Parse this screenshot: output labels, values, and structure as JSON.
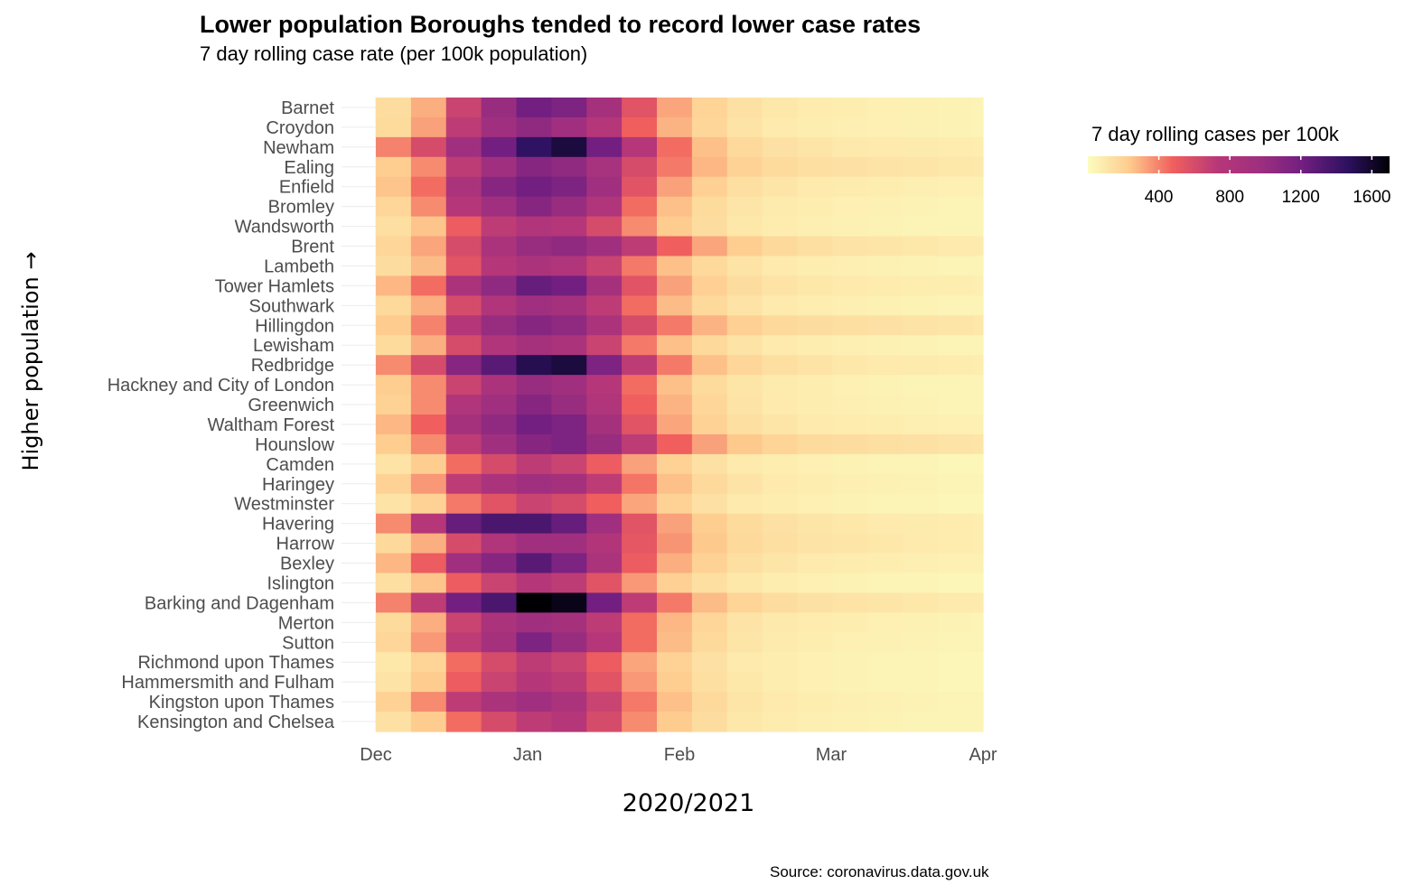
{
  "chart_data": {
    "type": "heatmap",
    "title": "Lower population Boroughs tended to record lower case rates",
    "subtitle": "7 day rolling case rate (per 100k population)",
    "xlabel": "2020/2021",
    "ylabel": "Higher population →",
    "source": "Source: coronavirus.data.gov.uk",
    "x_ticks": [
      "Dec",
      "Jan",
      "Feb",
      "Mar",
      "Apr"
    ],
    "x_range": [
      "2020-12-01",
      "2021-04-01"
    ],
    "x_dates": [
      "2020-12-01",
      "2020-12-08",
      "2020-12-15",
      "2020-12-22",
      "2020-12-29",
      "2021-01-05",
      "2021-01-12",
      "2021-01-19",
      "2021-01-26",
      "2021-02-02",
      "2021-02-09",
      "2021-02-16",
      "2021-02-23",
      "2021-03-02",
      "2021-03-09",
      "2021-03-16",
      "2021-03-23",
      "2021-03-30"
    ],
    "grid": true,
    "legend": {
      "title": "7 day rolling cases per 100k",
      "position": "top-right",
      "ticks": [
        400,
        800,
        1200,
        1600
      ],
      "range": [
        0,
        1700
      ],
      "palette": "magma (reversed)"
    },
    "boroughs": [
      "Barnet",
      "Croydon",
      "Newham",
      "Ealing",
      "Enfield",
      "Bromley",
      "Wandsworth",
      "Brent",
      "Lambeth",
      "Tower Hamlets",
      "Southwark",
      "Hillingdon",
      "Lewisham",
      "Redbridge",
      "Hackney and City of London",
      "Greenwich",
      "Waltham Forest",
      "Hounslow",
      "Camden",
      "Haringey",
      "Westminster",
      "Havering",
      "Harrow",
      "Bexley",
      "Islington",
      "Barking and Dagenham",
      "Merton",
      "Sutton",
      "Richmond upon Thames",
      "Hammersmith and Fulham",
      "Kingston upon Thames",
      "Kensington and Chelsea"
    ],
    "series": [
      {
        "name": "Barnet",
        "values": [
          150,
          300,
          650,
          1000,
          1200,
          1150,
          900,
          550,
          320,
          190,
          130,
          100,
          80,
          70,
          60,
          55,
          50,
          45
        ]
      },
      {
        "name": "Croydon",
        "values": [
          160,
          330,
          700,
          950,
          1050,
          950,
          750,
          480,
          290,
          180,
          120,
          90,
          75,
          65,
          60,
          55,
          50,
          45
        ]
      },
      {
        "name": "Newham",
        "values": [
          400,
          600,
          950,
          1200,
          1450,
          1550,
          1200,
          750,
          450,
          260,
          170,
          130,
          110,
          95,
          90,
          85,
          80,
          75
        ]
      },
      {
        "name": "Ealing",
        "values": [
          220,
          380,
          700,
          950,
          1100,
          1050,
          880,
          600,
          420,
          280,
          200,
          160,
          140,
          130,
          120,
          110,
          100,
          95
        ]
      },
      {
        "name": "Enfield",
        "values": [
          250,
          450,
          850,
          1100,
          1200,
          1150,
          950,
          550,
          330,
          210,
          140,
          110,
          90,
          80,
          70,
          65,
          60,
          55
        ]
      },
      {
        "name": "Bromley",
        "values": [
          180,
          380,
          750,
          950,
          1100,
          1000,
          800,
          450,
          260,
          160,
          110,
          85,
          70,
          60,
          55,
          50,
          45,
          40
        ]
      },
      {
        "name": "Wandsworth",
        "values": [
          140,
          250,
          500,
          700,
          800,
          750,
          600,
          380,
          230,
          150,
          100,
          80,
          65,
          55,
          50,
          45,
          40,
          40
        ]
      },
      {
        "name": "Brent",
        "values": [
          180,
          320,
          600,
          850,
          1000,
          1050,
          950,
          700,
          480,
          320,
          220,
          170,
          140,
          120,
          110,
          100,
          90,
          85
        ]
      },
      {
        "name": "Lambeth",
        "values": [
          150,
          270,
          550,
          750,
          850,
          800,
          650,
          420,
          260,
          170,
          120,
          90,
          75,
          65,
          55,
          50,
          45,
          40
        ]
      },
      {
        "name": "Tower Hamlets",
        "values": [
          280,
          450,
          850,
          1050,
          1250,
          1200,
          900,
          550,
          330,
          210,
          150,
          120,
          100,
          90,
          80,
          75,
          70,
          65
        ]
      },
      {
        "name": "Southwark",
        "values": [
          170,
          300,
          600,
          800,
          950,
          900,
          700,
          450,
          270,
          170,
          120,
          90,
          75,
          65,
          55,
          50,
          45,
          40
        ]
      },
      {
        "name": "Hillingdon",
        "values": [
          230,
          400,
          750,
          1000,
          1100,
          1050,
          850,
          600,
          420,
          290,
          210,
          170,
          150,
          140,
          130,
          120,
          110,
          100
        ]
      },
      {
        "name": "Lewisham",
        "values": [
          160,
          300,
          600,
          800,
          900,
          850,
          650,
          420,
          260,
          170,
          120,
          90,
          75,
          65,
          55,
          50,
          45,
          40
        ]
      },
      {
        "name": "Redbridge",
        "values": [
          380,
          600,
          1100,
          1300,
          1500,
          1550,
          1150,
          700,
          420,
          260,
          180,
          140,
          120,
          100,
          90,
          85,
          80,
          75
        ]
      },
      {
        "name": "Hackney and City of London",
        "values": [
          220,
          380,
          650,
          850,
          1000,
          950,
          750,
          450,
          260,
          160,
          110,
          85,
          70,
          60,
          50,
          45,
          40,
          40
        ]
      },
      {
        "name": "Greenwich",
        "values": [
          200,
          380,
          800,
          950,
          1100,
          1000,
          800,
          480,
          290,
          180,
          120,
          90,
          75,
          65,
          55,
          50,
          45,
          40
        ]
      },
      {
        "name": "Waltham Forest",
        "values": [
          280,
          480,
          900,
          1050,
          1200,
          1150,
          900,
          550,
          320,
          200,
          140,
          110,
          90,
          80,
          70,
          65,
          60,
          55
        ]
      },
      {
        "name": "Hounslow",
        "values": [
          220,
          380,
          700,
          950,
          1100,
          1150,
          1000,
          700,
          480,
          330,
          240,
          190,
          160,
          150,
          140,
          130,
          120,
          110
        ]
      },
      {
        "name": "Camden",
        "values": [
          120,
          220,
          450,
          600,
          700,
          650,
          500,
          330,
          200,
          130,
          90,
          70,
          60,
          50,
          45,
          40,
          35,
          35
        ]
      },
      {
        "name": "Haringey",
        "values": [
          200,
          350,
          700,
          850,
          950,
          900,
          700,
          430,
          260,
          170,
          120,
          90,
          75,
          65,
          55,
          50,
          45,
          40
        ]
      },
      {
        "name": "Westminster",
        "values": [
          120,
          200,
          420,
          550,
          650,
          600,
          480,
          320,
          200,
          130,
          90,
          70,
          60,
          50,
          45,
          40,
          35,
          35
        ]
      },
      {
        "name": "Havering",
        "values": [
          380,
          750,
          1250,
          1350,
          1350,
          1250,
          950,
          550,
          330,
          220,
          160,
          130,
          110,
          100,
          90,
          85,
          80,
          75
        ]
      },
      {
        "name": "Harrow",
        "values": [
          170,
          300,
          600,
          800,
          950,
          950,
          780,
          530,
          360,
          240,
          170,
          140,
          120,
          110,
          100,
          90,
          80,
          75
        ]
      },
      {
        "name": "Bexley",
        "values": [
          280,
          500,
          950,
          1100,
          1300,
          1150,
          850,
          500,
          300,
          200,
          140,
          110,
          90,
          80,
          70,
          65,
          60,
          55
        ]
      },
      {
        "name": "Islington",
        "values": [
          140,
          250,
          500,
          650,
          750,
          700,
          550,
          350,
          210,
          140,
          100,
          75,
          60,
          50,
          45,
          40,
          35,
          35
        ]
      },
      {
        "name": "Barking and Dagenham",
        "values": [
          400,
          700,
          1200,
          1350,
          1700,
          1650,
          1200,
          700,
          420,
          270,
          190,
          150,
          130,
          120,
          110,
          100,
          90,
          85
        ]
      },
      {
        "name": "Merton",
        "values": [
          160,
          300,
          650,
          850,
          950,
          900,
          700,
          450,
          280,
          180,
          120,
          95,
          80,
          70,
          60,
          55,
          50,
          45
        ]
      },
      {
        "name": "Sutton",
        "values": [
          180,
          350,
          700,
          900,
          1150,
          1000,
          750,
          450,
          270,
          170,
          110,
          85,
          70,
          60,
          55,
          50,
          45,
          40
        ]
      },
      {
        "name": "Richmond upon Thames",
        "values": [
          100,
          190,
          450,
          600,
          700,
          650,
          500,
          320,
          200,
          130,
          90,
          70,
          60,
          50,
          45,
          40,
          35,
          35
        ]
      },
      {
        "name": "Hammersmith and Fulham",
        "values": [
          120,
          230,
          500,
          650,
          750,
          700,
          550,
          350,
          220,
          140,
          100,
          75,
          60,
          50,
          45,
          40,
          35,
          35
        ]
      },
      {
        "name": "Kingston upon Thames",
        "values": [
          200,
          380,
          700,
          850,
          950,
          850,
          650,
          420,
          260,
          170,
          115,
          90,
          75,
          65,
          55,
          50,
          45,
          40
        ]
      },
      {
        "name": "Kensington and Chelsea",
        "values": [
          130,
          230,
          450,
          600,
          700,
          750,
          600,
          380,
          230,
          150,
          100,
          80,
          65,
          55,
          50,
          45,
          40,
          40
        ]
      }
    ]
  }
}
